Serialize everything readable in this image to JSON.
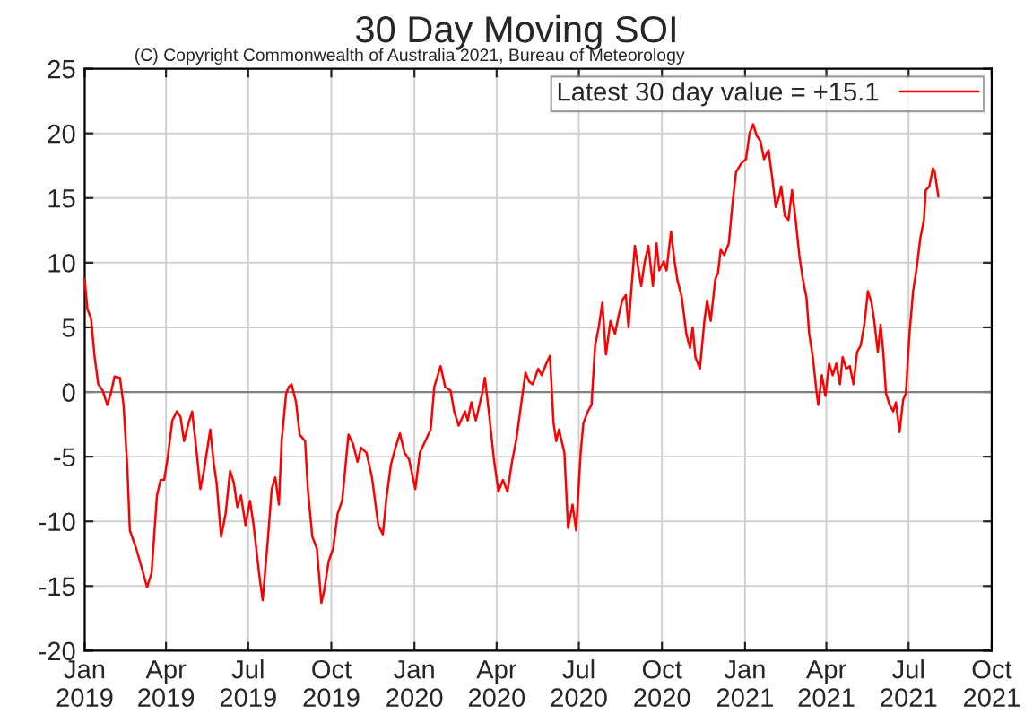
{
  "chart_data": {
    "type": "line",
    "title": "30 Day Moving SOI",
    "annotations": [
      "(C) Copyright Commonwealth of Australia 2021, Bureau of Meteorology"
    ],
    "x": [
      "2019-01-01",
      "2019-01-04",
      "2019-01-08",
      "2019-01-12",
      "2019-01-16",
      "2019-01-21",
      "2019-01-26",
      "2019-01-30",
      "2019-02-03",
      "2019-02-09",
      "2019-02-13",
      "2019-02-17",
      "2019-02-20",
      "2019-02-27",
      "2019-03-06",
      "2019-03-11",
      "2019-03-16",
      "2019-03-22",
      "2019-03-26",
      "2019-03-30",
      "2019-04-03",
      "2019-04-08",
      "2019-04-13",
      "2019-04-17",
      "2019-04-21",
      "2019-04-26",
      "2019-04-30",
      "2019-05-05",
      "2019-05-09",
      "2019-05-13",
      "2019-05-20",
      "2019-05-24",
      "2019-05-27",
      "2019-06-01",
      "2019-06-06",
      "2019-06-11",
      "2019-06-15",
      "2019-06-19",
      "2019-06-23",
      "2019-06-28",
      "2019-07-03",
      "2019-07-07",
      "2019-07-13",
      "2019-07-17",
      "2019-07-23",
      "2019-07-27",
      "2019-07-31",
      "2019-08-04",
      "2019-08-07",
      "2019-08-12",
      "2019-08-15",
      "2019-08-18",
      "2019-08-23",
      "2019-08-27",
      "2019-09-02",
      "2019-09-05",
      "2019-09-10",
      "2019-09-15",
      "2019-09-20",
      "2019-09-23",
      "2019-09-28",
      "2019-10-03",
      "2019-10-08",
      "2019-10-13",
      "2019-10-20",
      "2019-10-25",
      "2019-10-30",
      "2019-11-03",
      "2019-11-09",
      "2019-11-15",
      "2019-11-22",
      "2019-11-27",
      "2019-12-01",
      "2019-12-06",
      "2019-12-11",
      "2019-12-16",
      "2019-12-21",
      "2019-12-26",
      "2020-01-02",
      "2020-01-07",
      "2020-01-13",
      "2020-01-19",
      "2020-01-23",
      "2020-01-30",
      "2020-02-04",
      "2020-02-10",
      "2020-02-14",
      "2020-02-19",
      "2020-02-26",
      "2020-02-29",
      "2020-03-04",
      "2020-03-09",
      "2020-03-16",
      "2020-03-19",
      "2020-03-24",
      "2020-03-29",
      "2020-04-03",
      "2020-04-08",
      "2020-04-13",
      "2020-04-18",
      "2020-04-23",
      "2020-04-28",
      "2020-05-03",
      "2020-05-07",
      "2020-05-11",
      "2020-05-17",
      "2020-05-21",
      "2020-05-26",
      "2020-05-30",
      "2020-06-03",
      "2020-06-06",
      "2020-06-09",
      "2020-06-15",
      "2020-06-19",
      "2020-06-24",
      "2020-06-28",
      "2020-07-03",
      "2020-07-06",
      "2020-07-11",
      "2020-07-15",
      "2020-07-19",
      "2020-07-23",
      "2020-07-27",
      "2020-07-31",
      "2020-08-05",
      "2020-08-10",
      "2020-08-14",
      "2020-08-18",
      "2020-08-22",
      "2020-08-25",
      "2020-08-28",
      "2020-09-01",
      "2020-09-04",
      "2020-09-08",
      "2020-09-12",
      "2020-09-16",
      "2020-09-21",
      "2020-09-25",
      "2020-09-28",
      "2020-10-03",
      "2020-10-06",
      "2020-10-11",
      "2020-10-15",
      "2020-10-18",
      "2020-10-23",
      "2020-10-28",
      "2020-11-01",
      "2020-11-04",
      "2020-11-07",
      "2020-11-12",
      "2020-11-17",
      "2020-11-20",
      "2020-11-24",
      "2020-11-29",
      "2020-12-02",
      "2020-12-05",
      "2020-12-09",
      "2020-12-14",
      "2020-12-18",
      "2020-12-22",
      "2020-12-28",
      "2021-01-02",
      "2021-01-06",
      "2021-01-10",
      "2021-01-14",
      "2021-01-18",
      "2021-01-22",
      "2021-01-27",
      "2021-01-31",
      "2021-02-04",
      "2021-02-08",
      "2021-02-10",
      "2021-02-14",
      "2021-02-18",
      "2021-02-22",
      "2021-02-26",
      "2021-03-02",
      "2021-03-06",
      "2021-03-10",
      "2021-03-13",
      "2021-03-17",
      "2021-03-21",
      "2021-03-23",
      "2021-03-27",
      "2021-03-31",
      "2021-04-04",
      "2021-04-08",
      "2021-04-12",
      "2021-04-16",
      "2021-04-19",
      "2021-04-23",
      "2021-04-27",
      "2021-05-01",
      "2021-05-05",
      "2021-05-09",
      "2021-05-13",
      "2021-05-17",
      "2021-05-21",
      "2021-05-24",
      "2021-05-28",
      "2021-05-31",
      "2021-06-03",
      "2021-06-06",
      "2021-06-10",
      "2021-06-14",
      "2021-06-17",
      "2021-06-21",
      "2021-06-25",
      "2021-06-28",
      "2021-07-02",
      "2021-07-06",
      "2021-07-10",
      "2021-07-14",
      "2021-07-18",
      "2021-07-20",
      "2021-07-24",
      "2021-07-28",
      "2021-07-30",
      "2021-08-03"
    ],
    "series": [
      {
        "name": "Latest 30 day value = +15.1",
        "color": "#ff0000",
        "values": [
          8.7,
          6.4,
          5.7,
          2.7,
          0.6,
          0.1,
          -1.0,
          -0.1,
          1.2,
          1.1,
          -1.0,
          -5.6,
          -10.7,
          -12.1,
          -13.8,
          -15.1,
          -14.0,
          -8.0,
          -6.8,
          -6.8,
          -5.0,
          -2.2,
          -1.5,
          -1.9,
          -3.8,
          -2.4,
          -1.5,
          -4.7,
          -7.5,
          -6.1,
          -2.9,
          -5.6,
          -7.0,
          -11.2,
          -9.4,
          -6.1,
          -7.0,
          -8.9,
          -8.0,
          -10.3,
          -8.4,
          -10.3,
          -14.0,
          -16.1,
          -11.2,
          -7.5,
          -6.6,
          -8.7,
          -3.8,
          -0.1,
          0.4,
          0.6,
          -0.8,
          -3.3,
          -3.8,
          -7.5,
          -11.2,
          -12.1,
          -16.3,
          -15.4,
          -13.1,
          -12.1,
          -9.4,
          -8.4,
          -3.3,
          -4.0,
          -5.4,
          -4.3,
          -4.7,
          -6.6,
          -10.3,
          -11.0,
          -8.2,
          -5.6,
          -4.3,
          -3.2,
          -4.7,
          -5.2,
          -7.5,
          -4.7,
          -3.8,
          -2.9,
          0.4,
          2.0,
          0.4,
          0.1,
          -1.5,
          -2.6,
          -1.5,
          -2.2,
          -0.8,
          -2.2,
          -0.1,
          1.1,
          -1.9,
          -5.2,
          -7.7,
          -6.8,
          -7.7,
          -5.4,
          -3.6,
          -1.0,
          1.5,
          0.8,
          0.6,
          1.8,
          1.3,
          2.2,
          2.8,
          -2.4,
          -3.8,
          -2.9,
          -4.7,
          -10.5,
          -8.7,
          -10.7,
          -4.7,
          -2.4,
          -1.5,
          -1.0,
          3.6,
          5.0,
          6.9,
          2.9,
          5.5,
          4.5,
          5.9,
          7.1,
          7.5,
          5.0,
          7.8,
          11.3,
          9.9,
          8.2,
          10.1,
          11.3,
          8.2,
          11.5,
          9.4,
          10.1,
          9.4,
          12.4,
          10.1,
          8.7,
          7.3,
          4.5,
          3.4,
          5.0,
          2.7,
          1.8,
          5.5,
          7.1,
          5.5,
          8.7,
          9.2,
          11.0,
          10.6,
          11.5,
          14.5,
          17.0,
          17.7,
          18.0,
          20.0,
          20.7,
          19.8,
          19.4,
          18.0,
          18.7,
          16.6,
          14.3,
          15.2,
          15.9,
          13.6,
          13.3,
          15.6,
          13.3,
          10.6,
          8.7,
          7.3,
          4.5,
          2.7,
          0.1,
          -1.0,
          1.3,
          -0.3,
          2.2,
          1.3,
          2.2,
          0.6,
          2.7,
          1.8,
          2.0,
          0.6,
          3.1,
          3.6,
          5.2,
          7.8,
          6.9,
          5.5,
          3.1,
          5.2,
          3.1,
          -0.1,
          -1.0,
          -1.5,
          -0.8,
          -3.1,
          -0.6,
          -0.1,
          4.5,
          7.8,
          9.6,
          11.9,
          13.3,
          15.6,
          15.9,
          17.3,
          17.0,
          15.1
        ]
      }
    ],
    "xlim": [
      "2019-01-01",
      "2021-10-01"
    ],
    "xticks": [
      {
        "value": "2019-01-01",
        "label": "Jan\n2019"
      },
      {
        "value": "2019-04-01",
        "label": "Apr\n2019"
      },
      {
        "value": "2019-07-01",
        "label": "Jul\n2019"
      },
      {
        "value": "2019-10-01",
        "label": "Oct\n2019"
      },
      {
        "value": "2020-01-01",
        "label": "Jan\n2020"
      },
      {
        "value": "2020-04-01",
        "label": "Apr\n2020"
      },
      {
        "value": "2020-07-01",
        "label": "Jul\n2020"
      },
      {
        "value": "2020-10-01",
        "label": "Oct\n2020"
      },
      {
        "value": "2021-01-01",
        "label": "Jan\n2021"
      },
      {
        "value": "2021-04-01",
        "label": "Apr\n2021"
      },
      {
        "value": "2021-07-01",
        "label": "Jul\n2021"
      },
      {
        "value": "2021-10-01",
        "label": "Oct\n2021"
      }
    ],
    "ylim": [
      -20,
      25
    ],
    "yticks": [
      -20,
      -15,
      -10,
      -5,
      0,
      5,
      10,
      15,
      20,
      25
    ],
    "ref_lines": [
      {
        "axis": "y",
        "value": 0,
        "color": "#808080"
      }
    ],
    "grid": true,
    "legend": "top right"
  }
}
